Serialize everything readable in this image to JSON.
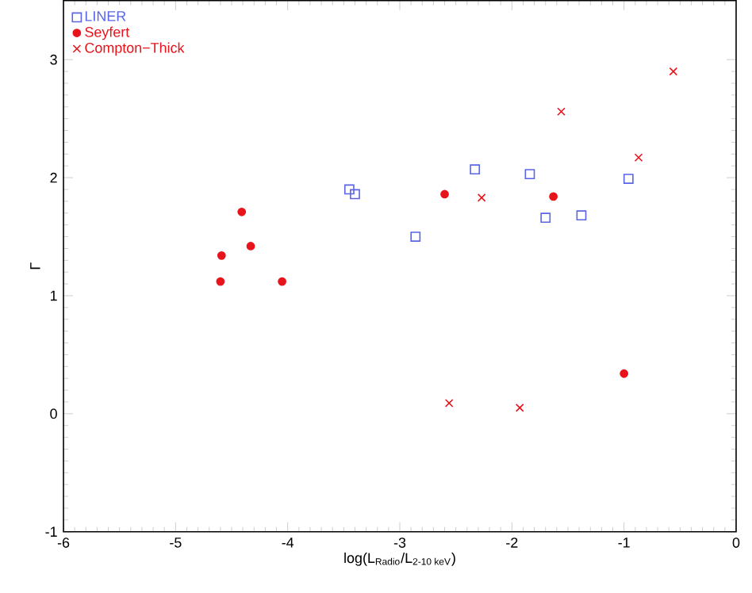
{
  "chart_data": {
    "type": "scatter",
    "xlabel": "log(L$_{Radio}$/L$_{2-10 keV}$)",
    "ylabel": "Γ",
    "xlim": [
      -6,
      0
    ],
    "ylim": [
      -1,
      3.5
    ],
    "xticks": [
      -6,
      -5,
      -4,
      -3,
      -2,
      -1,
      0
    ],
    "yticks": [
      -1,
      0,
      1,
      2,
      3
    ],
    "legend": "top left",
    "grid": false,
    "series": [
      {
        "name": "LINER",
        "color": "#5a64e6",
        "marker": "square",
        "x": [
          -3.45,
          -3.4,
          -2.86,
          -2.33,
          -1.84,
          -1.7,
          -1.38,
          -0.96
        ],
        "values": [
          1.9,
          1.86,
          1.5,
          2.07,
          2.03,
          1.66,
          1.68,
          1.99
        ]
      },
      {
        "name": "Seyfert",
        "color": "#e8141c",
        "marker": "circle",
        "x": [
          -4.41,
          -4.59,
          -4.33,
          -4.6,
          -4.05,
          -2.6,
          -1.63,
          -1.0
        ],
        "values": [
          1.71,
          1.34,
          1.42,
          1.12,
          1.12,
          1.86,
          1.84,
          0.34
        ]
      },
      {
        "name": "Compton−Thick",
        "color": "#e8141c",
        "marker": "cross",
        "x": [
          -0.56,
          -1.56,
          -0.87,
          -2.27,
          -2.56,
          -1.93
        ],
        "values": [
          2.9,
          2.56,
          2.17,
          1.83,
          0.09,
          0.05
        ]
      }
    ]
  }
}
